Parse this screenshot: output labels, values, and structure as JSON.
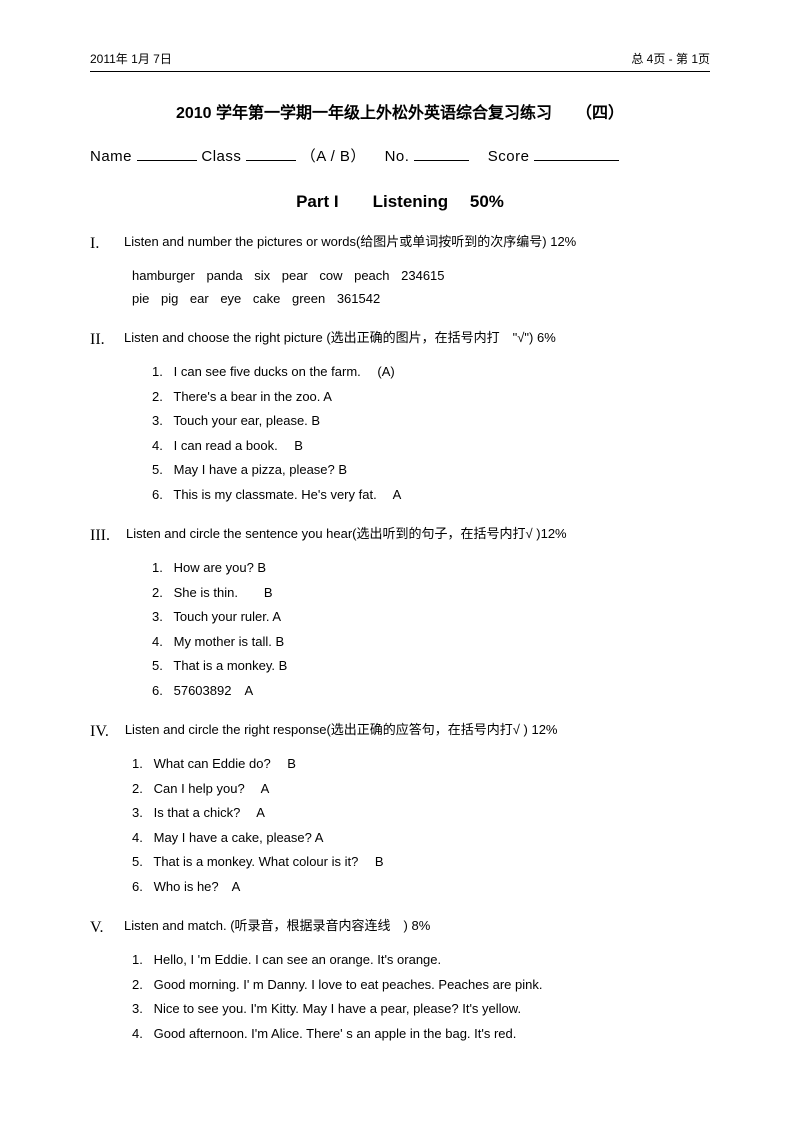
{
  "header": {
    "date": "2011年 1月 7日",
    "page_info": "总 4页 - 第 1页"
  },
  "title": "2010 学年第一学期一年级上外松外英语综合复习练习　　（四）",
  "form": {
    "name_label": "Name",
    "class_label": "Class",
    "ab": "（A / B）",
    "no_label": "No.",
    "score_label": "Score"
  },
  "part_title": "Part I　　Listening　 50%",
  "sections": [
    {
      "roman": "I.",
      "desc": "Listen and number the pictures or words(给图片或单词按听到的次序编号) 12%",
      "lines": [
        "hamburger  panda  six  pear  cow  peach  234615",
        "pie  pig  ear  eye  cake  green  361542"
      ]
    },
    {
      "roman": "II.",
      "desc": "Listen and choose the right picture (选出正确的图片，在括号内打　\"√\") 6%",
      "items": [
        {
          "n": "1.",
          "t": "I can see five ducks on the farm.　 (A)"
        },
        {
          "n": "2.",
          "t": "There's a bear in the zoo.  A"
        },
        {
          "n": "3.",
          "t": "Touch your ear, please. B"
        },
        {
          "n": "4.",
          "t": "I can read a book.　 B"
        },
        {
          "n": "5.",
          "t": "May I have a pizza, please?  B"
        },
        {
          "n": "6.",
          "t": "This is my classmate. He's very fat.　 A"
        }
      ]
    },
    {
      "roman": "III.",
      "desc": "Listen and circle the sentence you hear(选出听到的句子，在括号内打√  )12%",
      "items": [
        {
          "n": "1.",
          "t": "How are you?  B"
        },
        {
          "n": "2.",
          "t": "She is thin.　　B"
        },
        {
          "n": "3.",
          "t": "Touch your ruler.  A"
        },
        {
          "n": "4.",
          "t": "My mother is tall.   B"
        },
        {
          "n": "5.",
          "t": "That is a monkey.  B"
        },
        {
          "n": "6.",
          "t": "57603892　A"
        }
      ]
    },
    {
      "roman": "IV.",
      "desc": "Listen and circle the right response(选出正确的应答句，在括号内打√ ) 12%",
      "items": [
        {
          "n": "1.",
          "t": "What can Eddie do?　 B"
        },
        {
          "n": "2.",
          "t": "Can I help you?　 A"
        },
        {
          "n": "3.",
          "t": "Is that a chick?　 A"
        },
        {
          "n": "4.",
          "t": "May I have a cake, please? A"
        },
        {
          "n": "5.",
          "t": "That is a monkey. What colour is it?　 B"
        },
        {
          "n": "6.",
          "t": "Who is he?　A"
        }
      ],
      "flat": true
    },
    {
      "roman": "V.",
      "desc": " Listen and match. (听录音，根据录音内容连线　) 8%",
      "items": [
        {
          "n": "1.",
          "t": "Hello, I 'm Eddie. I can see an orange. It's orange."
        },
        {
          "n": "2.",
          "t": "Good morning. I' m Danny. I love to eat peaches. Peaches are pink."
        },
        {
          "n": "3.",
          "t": "Nice to see you. I'm Kitty. May I have a pear, please? It's yellow."
        },
        {
          "n": "4.",
          "t": "Good afternoon. I'm Alice. There' s an apple in the bag. It's red."
        }
      ],
      "flat": true
    }
  ]
}
